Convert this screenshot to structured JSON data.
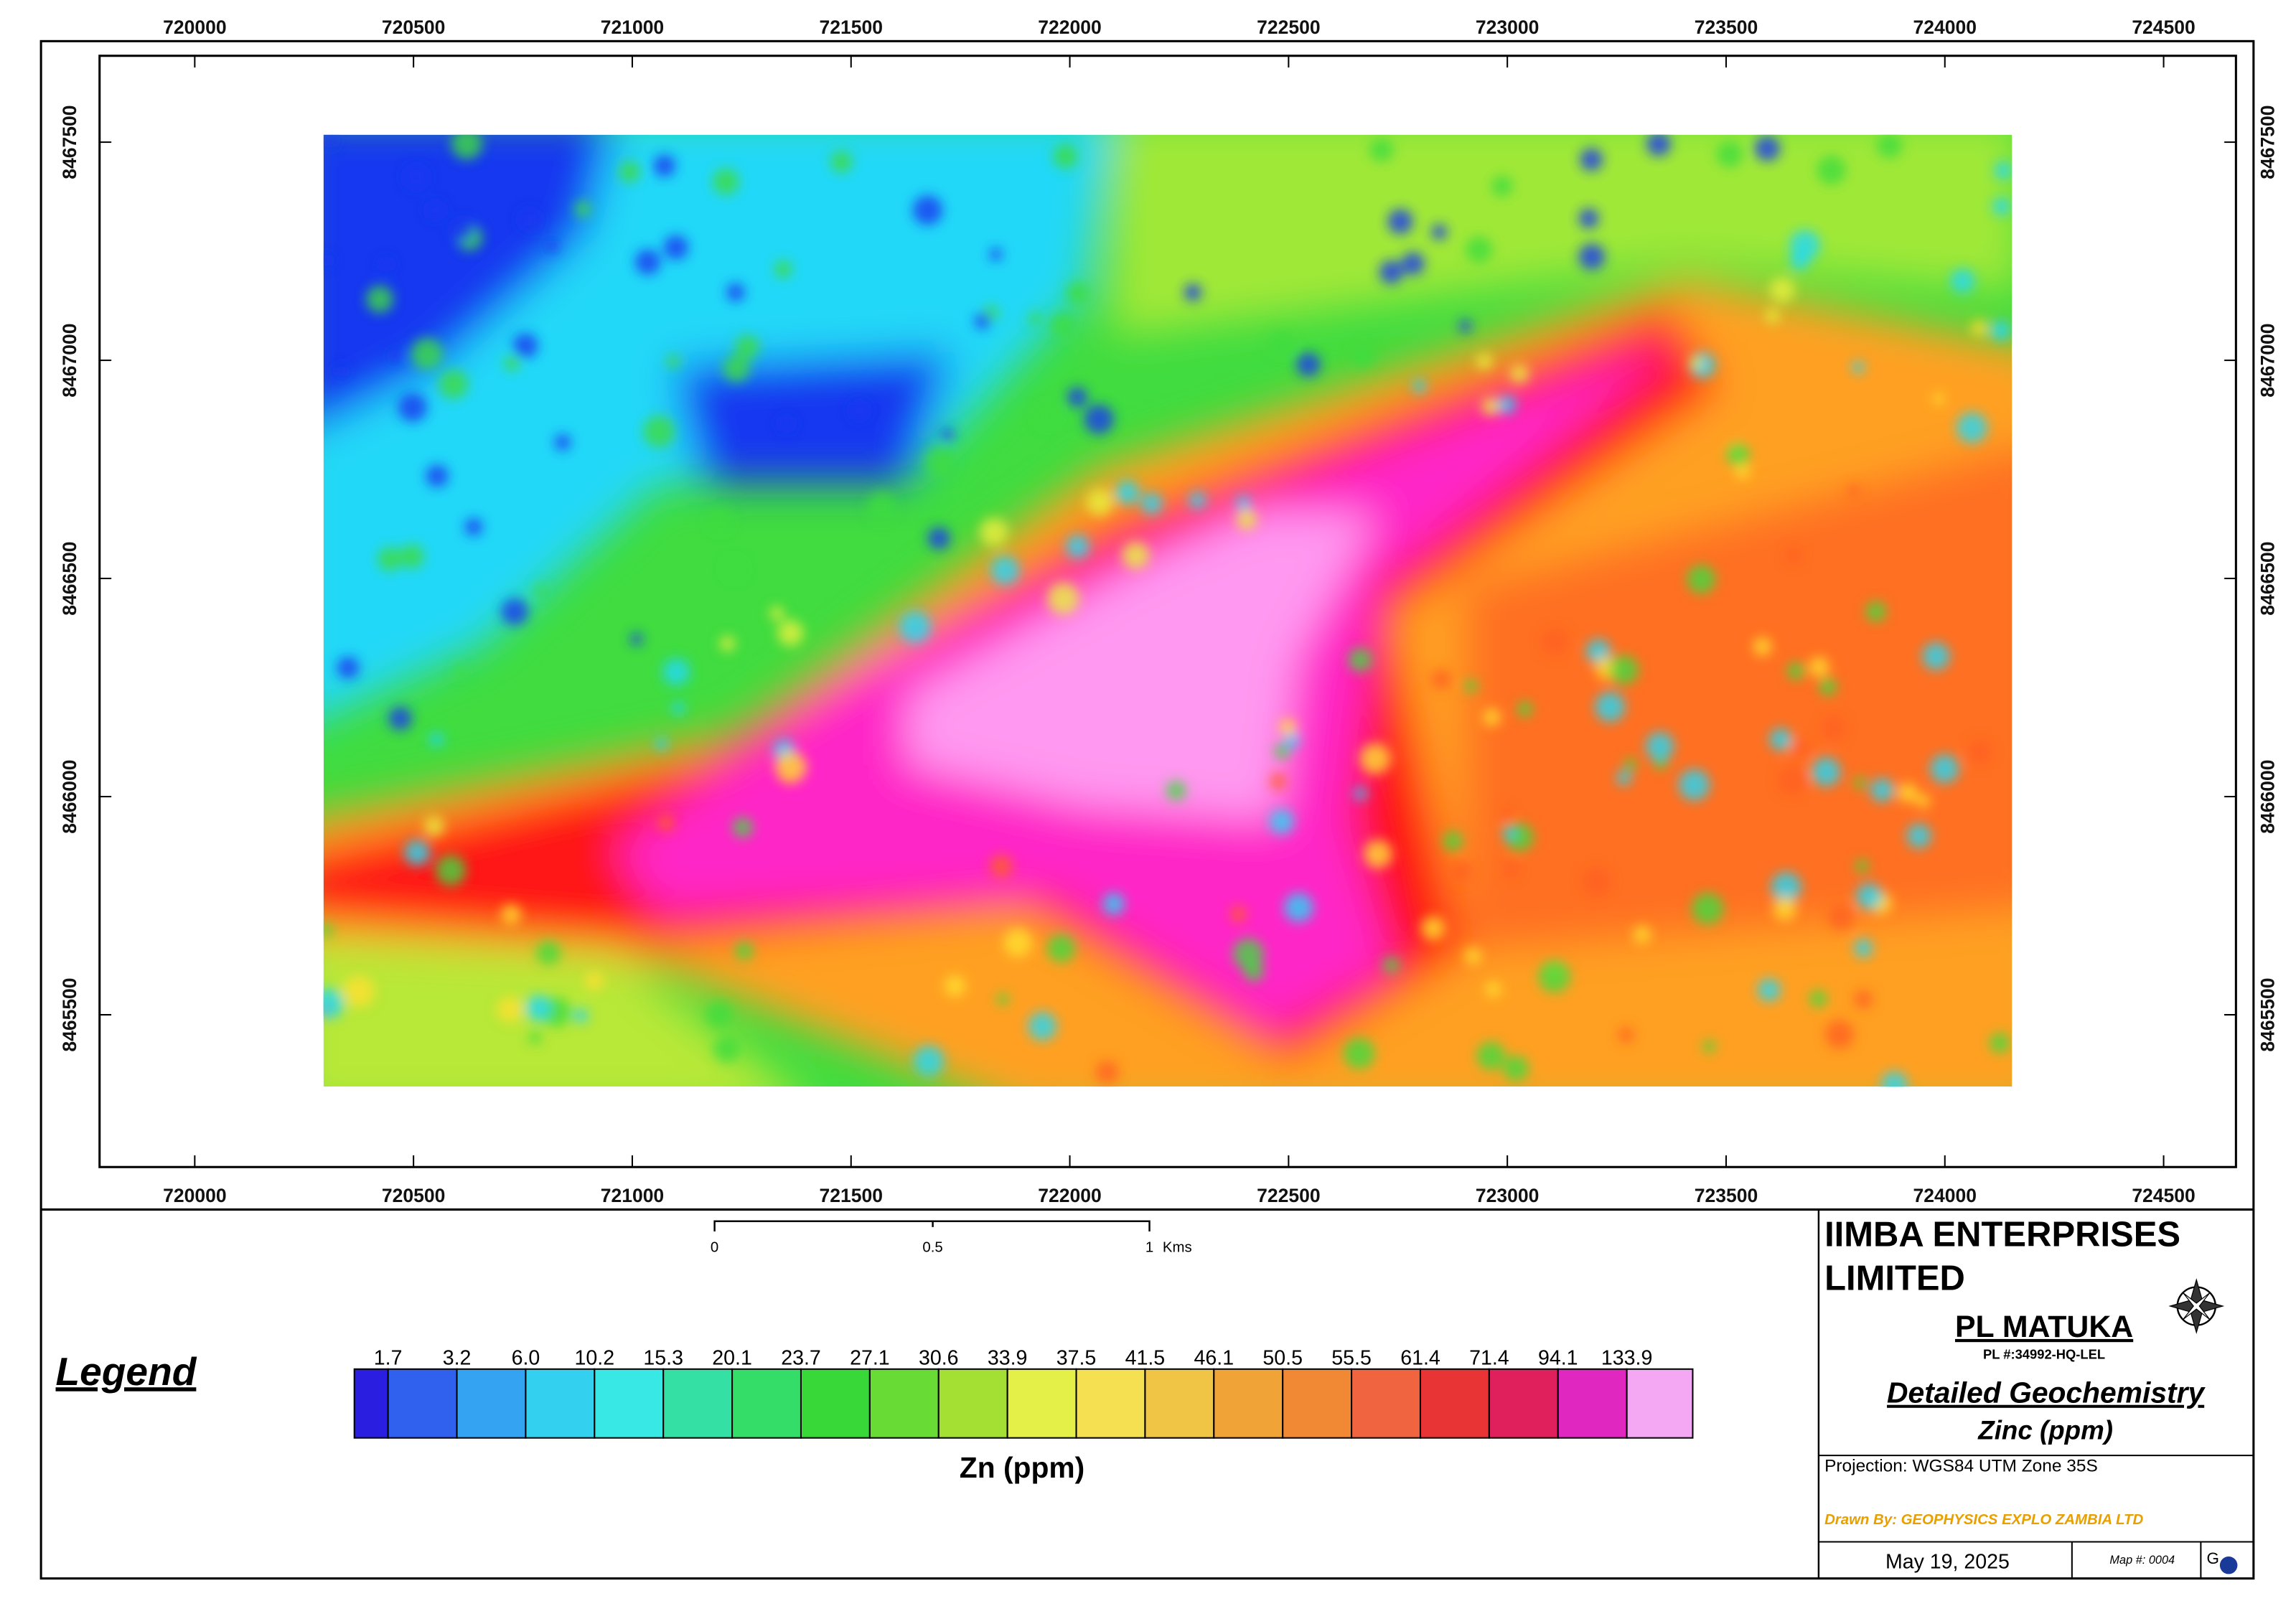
{
  "map": {
    "x_ticks": [
      720000,
      720500,
      721000,
      721500,
      722000,
      722500,
      723000,
      723500,
      724000,
      724500
    ],
    "y_ticks": [
      8467500,
      8467000,
      8466500,
      8466000,
      8465500
    ],
    "scale_bar": {
      "labels": [
        "0",
        "0.5",
        "1"
      ],
      "unit": "Kms"
    },
    "legend": {
      "heading": "Legend",
      "labels": [
        "1.7",
        "3.2",
        "6.0",
        "10.2",
        "15.3",
        "20.1",
        "23.7",
        "27.1",
        "30.6",
        "33.9",
        "37.5",
        "41.5",
        "46.1",
        "50.5",
        "55.5",
        "61.4",
        "71.4",
        "94.1",
        "133.9"
      ],
      "caption": "Zn (ppm)"
    },
    "title_block": {
      "company": [
        "IIMBA ENTERPRISES",
        "LIMITED"
      ],
      "license": "PL MATUKA",
      "license_no": "PL #:34992-HQ-LEL",
      "title": "Detailed Geochemistry",
      "subtitle": "Zinc (ppm)",
      "projection": "Projection: WGS84 UTM Zone 35S",
      "drawn_by": "Drawn By: GEOPHYSICS EXPLO ZAMBIA LTD",
      "date": "May 19, 2025",
      "map_no": "Map #: 0004"
    }
  }
}
